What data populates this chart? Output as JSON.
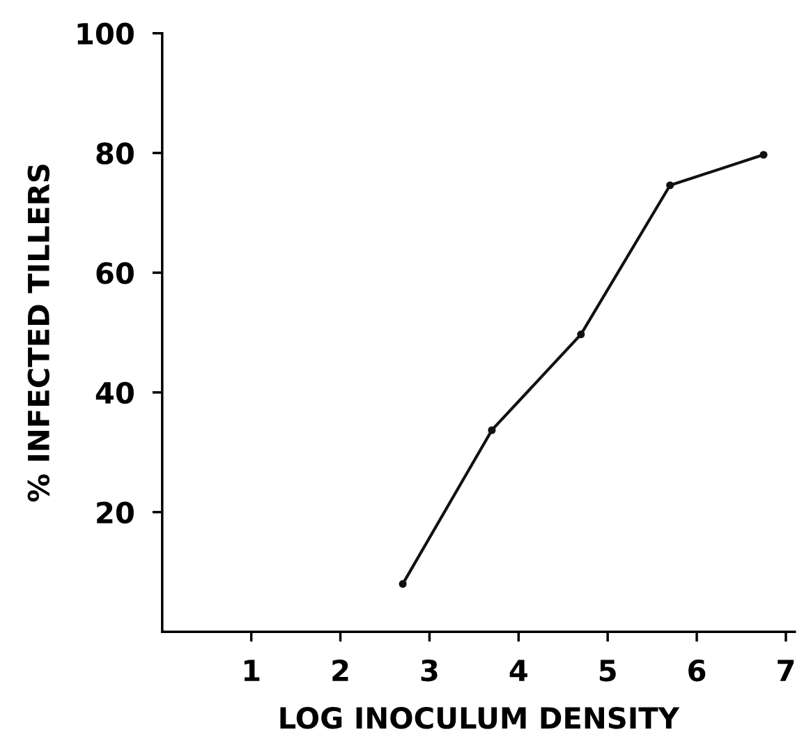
{
  "chart_data": {
    "type": "line",
    "xlabel": "LOG INOCULUM DENSITY",
    "ylabel": "% INFECTED TILLERS",
    "x": [
      2.7,
      3.7,
      4.7,
      5.7,
      6.75
    ],
    "series": [
      {
        "color": "#111111",
        "values": [
          8,
          33.7,
          49.7,
          74.6,
          79.7
        ]
      }
    ],
    "xlim": [
      0,
      7.1
    ],
    "ylim": [
      0,
      100
    ],
    "xticks": [
      1,
      2,
      3,
      4,
      5,
      6,
      7
    ],
    "yticks": [
      20,
      40,
      60,
      80,
      100
    ],
    "marker": "circle",
    "line_style": "solid",
    "grid": false,
    "legend": false
  }
}
